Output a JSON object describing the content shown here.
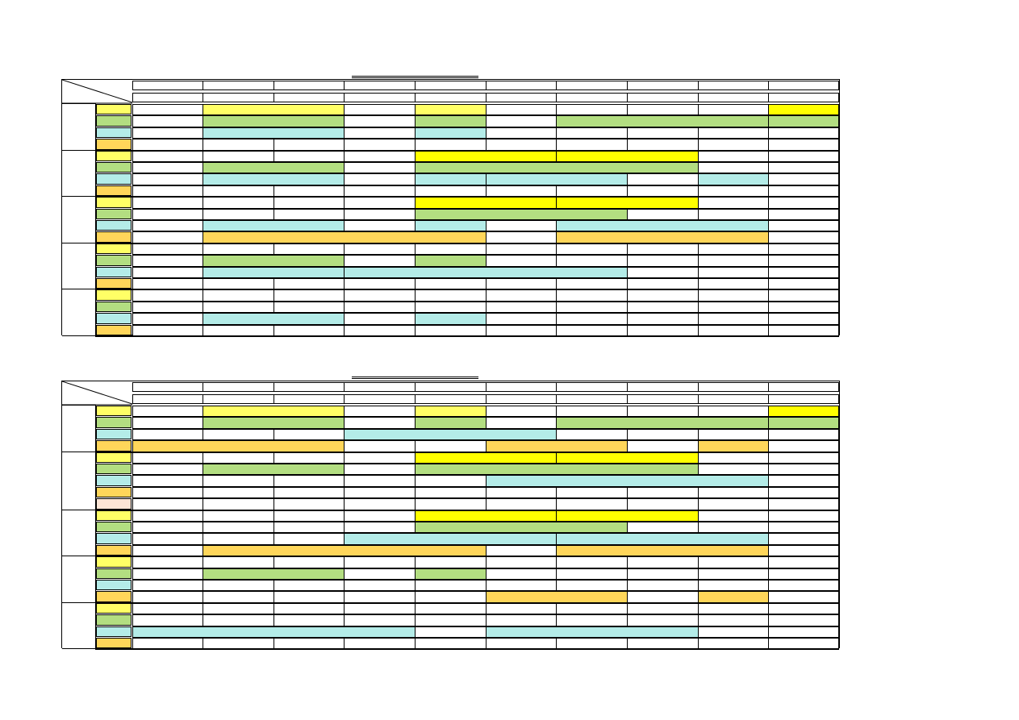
{
  "colors": {
    "y": "#ffff66",
    "Y": "#ffff00",
    "g": "#b3de81",
    "c": "#b4ece8",
    "o": "#ffd65a",
    "p": "#fde5d6"
  },
  "blocks": [
    {
      "name": "schedule-table-1",
      "groups": [
        {
          "rows": [
            "y",
            "g",
            "c",
            "o"
          ]
        },
        {
          "rows": [
            "y",
            "g",
            "c",
            "o"
          ]
        },
        {
          "rows": [
            "y",
            "g",
            "c",
            "o"
          ]
        },
        {
          "rows": [
            "y",
            "g",
            "c",
            "o"
          ]
        },
        {
          "rows": [
            "y",
            "g",
            "c",
            "o"
          ]
        }
      ],
      "spans": [
        {
          "row": 0,
          "from": 1,
          "to": 2,
          "color": "y"
        },
        {
          "row": 0,
          "from": 4,
          "to": 4,
          "color": "y"
        },
        {
          "row": 0,
          "from": 9,
          "to": 9,
          "color": "Y"
        },
        {
          "row": 1,
          "from": 1,
          "to": 2,
          "color": "g"
        },
        {
          "row": 1,
          "from": 4,
          "to": 4,
          "color": "g"
        },
        {
          "row": 1,
          "from": 6,
          "to": 8,
          "color": "g"
        },
        {
          "row": 1,
          "from": 9,
          "to": 9,
          "color": "g"
        },
        {
          "row": 2,
          "from": 1,
          "to": 2,
          "color": "c"
        },
        {
          "row": 2,
          "from": 4,
          "to": 4,
          "color": "c"
        },
        {
          "row": 4,
          "from": 4,
          "to": 5,
          "color": "Y"
        },
        {
          "row": 4,
          "from": 6,
          "to": 7,
          "color": "Y"
        },
        {
          "row": 5,
          "from": 1,
          "to": 2,
          "color": "g"
        },
        {
          "row": 5,
          "from": 4,
          "to": 7,
          "color": "g"
        },
        {
          "row": 6,
          "from": 1,
          "to": 2,
          "color": "c"
        },
        {
          "row": 6,
          "from": 4,
          "to": 4,
          "color": "c"
        },
        {
          "row": 6,
          "from": 5,
          "to": 6,
          "color": "c"
        },
        {
          "row": 6,
          "from": 8,
          "to": 8,
          "color": "c"
        },
        {
          "row": 8,
          "from": 4,
          "to": 5,
          "color": "Y"
        },
        {
          "row": 8,
          "from": 6,
          "to": 7,
          "color": "Y"
        },
        {
          "row": 9,
          "from": 4,
          "to": 6,
          "color": "g"
        },
        {
          "row": 10,
          "from": 1,
          "to": 2,
          "color": "c"
        },
        {
          "row": 10,
          "from": 4,
          "to": 4,
          "color": "c"
        },
        {
          "row": 10,
          "from": 6,
          "to": 8,
          "color": "c"
        },
        {
          "row": 11,
          "from": 1,
          "to": 4,
          "color": "o"
        },
        {
          "row": 11,
          "from": 6,
          "to": 8,
          "color": "o"
        },
        {
          "row": 13,
          "from": 1,
          "to": 2,
          "color": "g"
        },
        {
          "row": 13,
          "from": 4,
          "to": 4,
          "color": "g"
        },
        {
          "row": 14,
          "from": 1,
          "to": 2,
          "color": "c"
        },
        {
          "row": 14,
          "from": 3,
          "to": 6,
          "color": "c"
        },
        {
          "row": 18,
          "from": 1,
          "to": 2,
          "color": "c"
        },
        {
          "row": 18,
          "from": 4,
          "to": 4,
          "color": "c"
        }
      ]
    },
    {
      "name": "schedule-table-2",
      "groups": [
        {
          "rows": [
            "y",
            "g",
            "c",
            "o"
          ]
        },
        {
          "rows": [
            "y",
            "g",
            "c",
            "o",
            "p"
          ]
        },
        {
          "rows": [
            "y",
            "g",
            "c",
            "o"
          ]
        },
        {
          "rows": [
            "y",
            "g",
            "c",
            "o"
          ]
        },
        {
          "rows": [
            "y",
            "g",
            "c",
            "o"
          ]
        }
      ],
      "spans": [
        {
          "row": 0,
          "from": 1,
          "to": 2,
          "color": "y"
        },
        {
          "row": 0,
          "from": 4,
          "to": 4,
          "color": "y"
        },
        {
          "row": 0,
          "from": 9,
          "to": 9,
          "color": "Y"
        },
        {
          "row": 1,
          "from": 1,
          "to": 2,
          "color": "g"
        },
        {
          "row": 1,
          "from": 4,
          "to": 4,
          "color": "g"
        },
        {
          "row": 1,
          "from": 6,
          "to": 8,
          "color": "g"
        },
        {
          "row": 1,
          "from": 9,
          "to": 9,
          "color": "g"
        },
        {
          "row": 2,
          "from": 3,
          "to": 5,
          "color": "c"
        },
        {
          "row": 3,
          "from": 0,
          "to": 2,
          "color": "o"
        },
        {
          "row": 3,
          "from": 5,
          "to": 6,
          "color": "o"
        },
        {
          "row": 3,
          "from": 8,
          "to": 8,
          "color": "o"
        },
        {
          "row": 4,
          "from": 4,
          "to": 5,
          "color": "Y"
        },
        {
          "row": 4,
          "from": 6,
          "to": 7,
          "color": "Y"
        },
        {
          "row": 5,
          "from": 1,
          "to": 2,
          "color": "g"
        },
        {
          "row": 5,
          "from": 4,
          "to": 7,
          "color": "g"
        },
        {
          "row": 6,
          "from": 5,
          "to": 8,
          "color": "c"
        },
        {
          "row": 9,
          "from": 4,
          "to": 5,
          "color": "Y"
        },
        {
          "row": 9,
          "from": 6,
          "to": 7,
          "color": "Y"
        },
        {
          "row": 10,
          "from": 4,
          "to": 6,
          "color": "g"
        },
        {
          "row": 11,
          "from": 3,
          "to": 5,
          "color": "c"
        },
        {
          "row": 11,
          "from": 6,
          "to": 8,
          "color": "c"
        },
        {
          "row": 12,
          "from": 1,
          "to": 4,
          "color": "o"
        },
        {
          "row": 12,
          "from": 6,
          "to": 8,
          "color": "o"
        },
        {
          "row": 14,
          "from": 1,
          "to": 2,
          "color": "g"
        },
        {
          "row": 14,
          "from": 4,
          "to": 4,
          "color": "g"
        },
        {
          "row": 16,
          "from": 5,
          "to": 6,
          "color": "o"
        },
        {
          "row": 16,
          "from": 8,
          "to": 8,
          "color": "o"
        },
        {
          "row": 19,
          "from": 0,
          "to": 3,
          "color": "c"
        },
        {
          "row": 19,
          "from": 5,
          "to": 7,
          "color": "c"
        }
      ]
    }
  ]
}
